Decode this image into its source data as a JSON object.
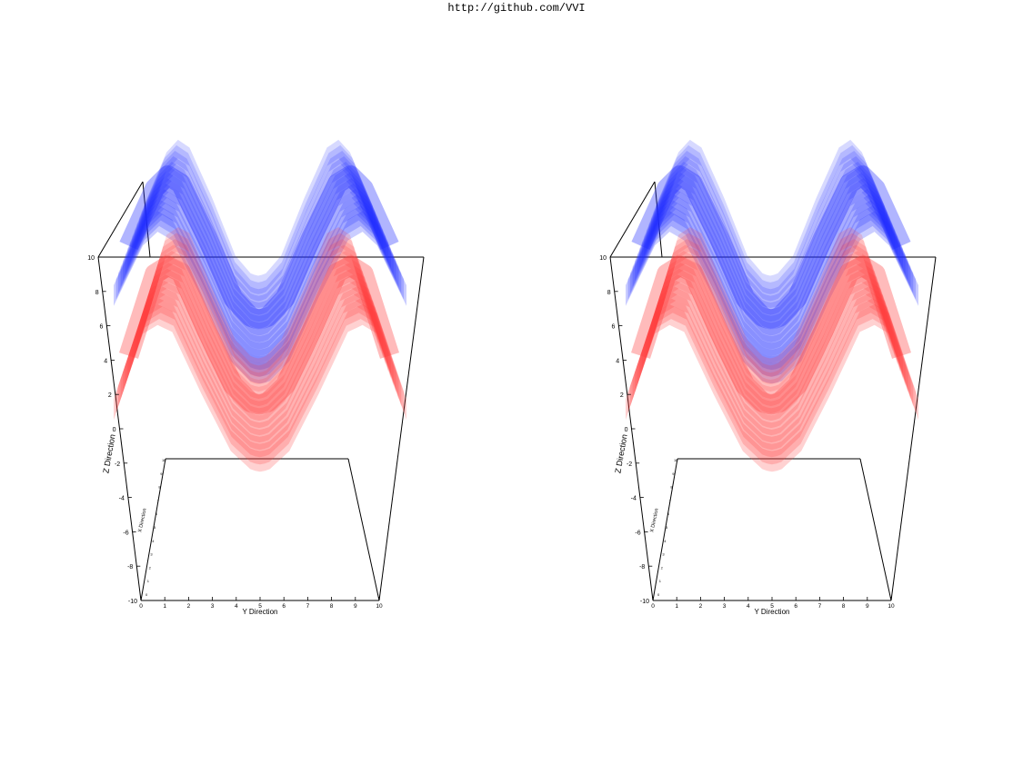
{
  "header": {
    "url_text": "http://github.com/VVI"
  },
  "views": [
    "left-eye",
    "right-eye"
  ],
  "chart_data": {
    "type": "surface3d",
    "title": "",
    "xlabel": "X Direction",
    "ylabel": "Y Direction",
    "zlabel": "Z Direction",
    "x_range": [
      0,
      10
    ],
    "y_range": [
      0,
      10
    ],
    "z_range": [
      -10,
      10
    ],
    "z_ticks": [
      -10,
      -8,
      -6,
      -4,
      -2,
      0,
      2,
      4,
      6,
      8,
      10
    ],
    "y_ticks": [
      0,
      1,
      2,
      3,
      4,
      5,
      6,
      7,
      8,
      9,
      10
    ],
    "x_ticks": [
      0,
      1,
      2,
      3,
      4,
      5,
      6,
      7,
      8,
      9,
      10
    ],
    "series": [
      {
        "color": "#1f2cff",
        "y": [
          0,
          1,
          1.5,
          2,
          3,
          4,
          4.7,
          5,
          5.3,
          6,
          7,
          8,
          8.5,
          9,
          10
        ],
        "z": [
          4,
          7.5,
          8.3,
          7.8,
          4.5,
          0.8,
          -0.4,
          -0.5,
          -0.4,
          0.8,
          4.5,
          7.8,
          8.3,
          7.5,
          4
        ]
      },
      {
        "color": "#ff3d3d",
        "y": [
          0,
          1,
          1.5,
          2,
          3,
          4,
          4.7,
          5,
          5.3,
          6,
          7,
          8,
          8.5,
          9,
          10
        ],
        "z": [
          -0.5,
          4.5,
          5.0,
          4.6,
          1.0,
          -2.3,
          -3.4,
          -3.5,
          -3.4,
          -2.3,
          1.0,
          4.6,
          5.0,
          4.5,
          -0.5
        ]
      }
    ]
  }
}
